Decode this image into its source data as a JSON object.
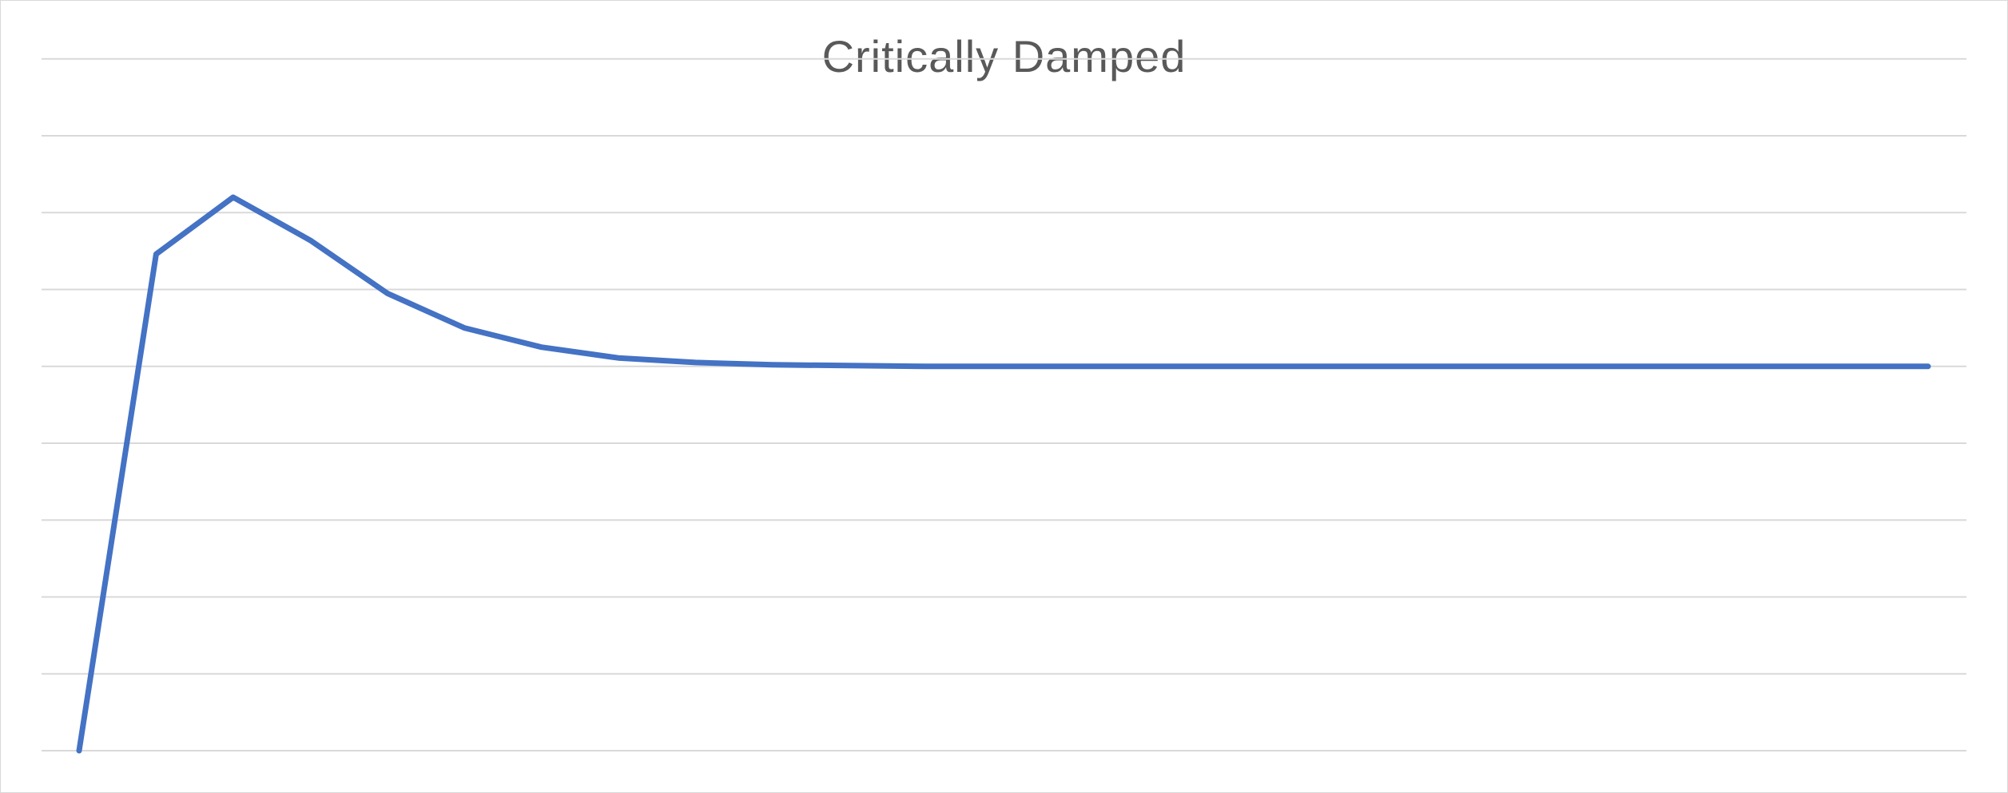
{
  "chart_data": {
    "type": "line",
    "title": "Critically Damped",
    "xlabel": "",
    "ylabel": "",
    "ylim": [
      0,
      8
    ],
    "gridlines": 8,
    "grid": true,
    "legend": "none",
    "tick_labels_shown": false,
    "series": [
      {
        "color": "#4472c4",
        "x": [
          0,
          1,
          2,
          3,
          4,
          5,
          6,
          7,
          8,
          9,
          10,
          11,
          12,
          13,
          14,
          15,
          16,
          17,
          18,
          19,
          20,
          21,
          22,
          23,
          24
        ],
        "values": [
          0.0,
          6.46,
          7.2,
          6.64,
          5.95,
          5.5,
          5.25,
          5.11,
          5.05,
          5.02,
          5.01,
          5.0,
          5.0,
          5.0,
          5.0,
          5.0,
          5.0,
          5.0,
          5.0,
          5.0,
          5.0,
          5.0,
          5.0,
          5.0,
          5.0
        ]
      }
    ]
  },
  "colors": {
    "line": "#4472c4",
    "grid": "#d9d9d9",
    "title": "#595959",
    "border": "#d9d9d9"
  }
}
